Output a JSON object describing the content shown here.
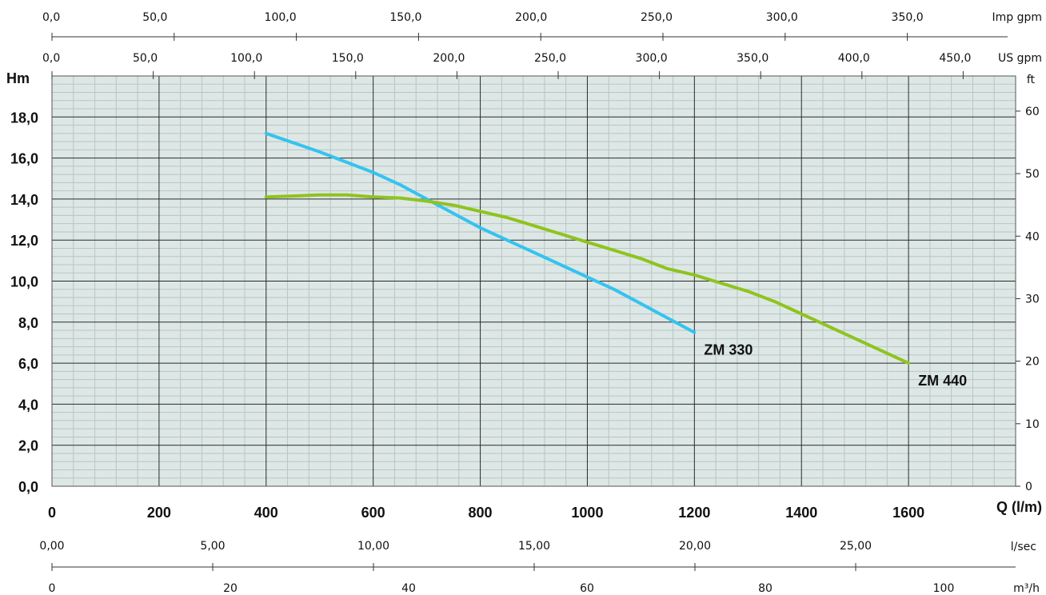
{
  "chart_data": {
    "type": "line",
    "colors": {
      "plot_bg": "#dde8e6",
      "minor_grid": "#b9c5c2",
      "major_grid": "#2a2a2a",
      "zm330": "#35c3ef",
      "zm440": "#8fc31f"
    },
    "axes": {
      "imp_gpm": {
        "label": "Imp gpm",
        "ticks": [
          "0,0",
          "50,0",
          "100,0",
          "150,0",
          "200,0",
          "250,0",
          "300,0",
          "350,0"
        ]
      },
      "us_gpm": {
        "label": "US gpm",
        "ticks": [
          "0,0",
          "50,0",
          "100,0",
          "150,0",
          "200,0",
          "250,0",
          "300,0",
          "350,0",
          "400,0",
          "450,0"
        ]
      },
      "head_m": {
        "label": "Hm",
        "ylim": [
          0,
          20
        ],
        "ticks": [
          "0,0",
          "2,0",
          "4,0",
          "6,0",
          "8,0",
          "10,0",
          "12,0",
          "14,0",
          "16,0",
          "18,0"
        ]
      },
      "head_ft": {
        "label": "ft",
        "ticks": [
          "0",
          "10",
          "20",
          "30",
          "40",
          "50",
          "60"
        ]
      },
      "flow_lpm": {
        "label": "Q (l/m)",
        "xlim": [
          0,
          1800
        ],
        "ticks": [
          "0",
          "200",
          "400",
          "600",
          "800",
          "1000",
          "1200",
          "1400",
          "1600"
        ]
      },
      "flow_lsec": {
        "label": "l/sec",
        "ticks": [
          "0,00",
          "5,00",
          "10,00",
          "15,00",
          "20,00",
          "25,00"
        ]
      },
      "flow_m3h": {
        "label": "m³/h",
        "ticks": [
          "0",
          "20",
          "40",
          "60",
          "80",
          "100"
        ]
      }
    },
    "series": [
      {
        "name": "ZM 330",
        "x": [
          400,
          500,
          550,
          600,
          650,
          700,
          750,
          800,
          850,
          900,
          950,
          1000,
          1050,
          1100,
          1150,
          1200
        ],
        "y": [
          17.2,
          16.3,
          15.8,
          15.3,
          14.7,
          14.0,
          13.3,
          12.6,
          12.0,
          11.4,
          10.8,
          10.2,
          9.6,
          8.9,
          8.2,
          7.5
        ]
      },
      {
        "name": "ZM 440",
        "x": [
          400,
          450,
          500,
          550,
          600,
          650,
          700,
          750,
          800,
          850,
          900,
          950,
          1000,
          1050,
          1100,
          1150,
          1200,
          1250,
          1300,
          1350,
          1400,
          1450,
          1500,
          1550,
          1600
        ],
        "y": [
          14.1,
          14.15,
          14.2,
          14.2,
          14.1,
          14.05,
          13.9,
          13.7,
          13.4,
          13.1,
          12.7,
          12.3,
          11.9,
          11.5,
          11.1,
          10.6,
          10.3,
          9.9,
          9.5,
          9.0,
          8.4,
          7.8,
          7.2,
          6.6,
          6.0
        ]
      }
    ]
  }
}
